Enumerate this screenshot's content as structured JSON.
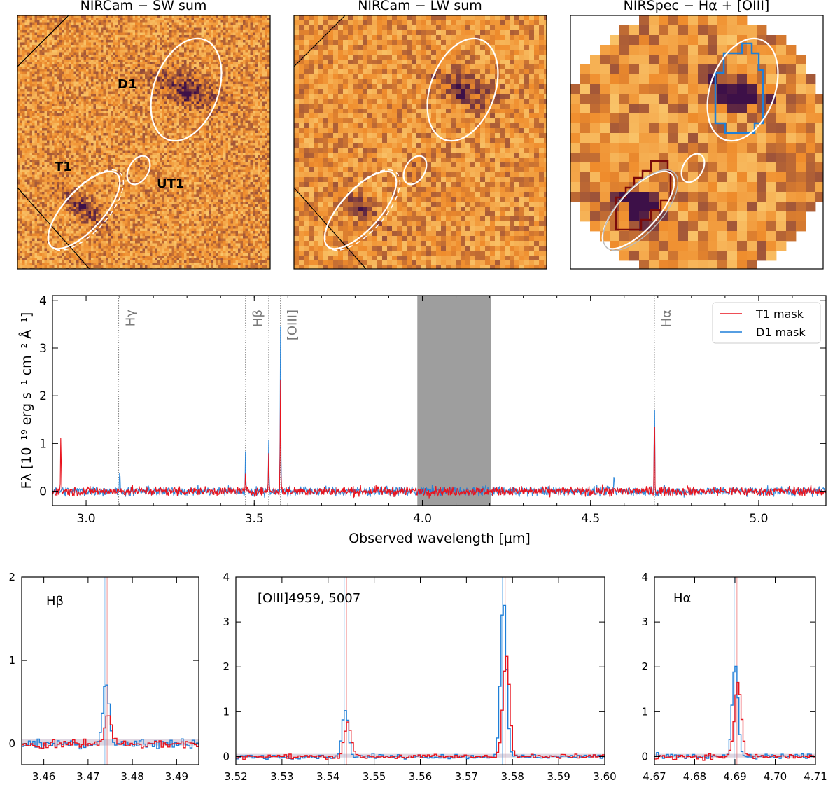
{
  "colors": {
    "t1": "#e8141e",
    "d1": "#1e7fd8",
    "grey_band": "#9e9e9e",
    "line_label": "#7a7a7a",
    "map_low": "#ffe28a",
    "map_mid": "#ef8c2c",
    "map_high": "#3d1048"
  },
  "images": {
    "sw": {
      "title": "NIRCam − SW sum",
      "labels": [
        "D1",
        "T1",
        "UT1"
      ]
    },
    "lw": {
      "title": "NIRCam − LW sum"
    },
    "spec": {
      "title": "NIRSpec − Hα + [OIII]"
    }
  },
  "chart_data": [
    {
      "type": "line",
      "title": "",
      "xlabel": "Observed wavelength [μm]",
      "ylabel": "Fλ [10⁻¹⁹ erg s⁻¹ cm⁻² Å⁻¹]",
      "xlim": [
        2.9,
        5.2
      ],
      "ylim": [
        -0.3,
        4.1
      ],
      "xticks": [
        "3.0",
        "3.5",
        "4.0",
        "4.5",
        "5.0"
      ],
      "xtick_values": [
        3.0,
        3.5,
        4.0,
        4.5,
        5.0
      ],
      "yticks": [
        "0",
        "1",
        "2",
        "3",
        "4"
      ],
      "ytick_values": [
        0,
        1,
        2,
        3,
        4
      ],
      "legend": [
        "T1 mask",
        "D1 mask"
      ],
      "legend_position": "top-right",
      "excluded_band": [
        3.985,
        4.205
      ],
      "line_markers": [
        {
          "label": "Hγ",
          "x": 3.097
        },
        {
          "label": "Hβ",
          "x": 3.474
        },
        {
          "label": "",
          "x": 3.543
        },
        {
          "label": "[OIII]",
          "x": 3.578
        },
        {
          "label": "Hα",
          "x": 4.69
        }
      ],
      "series": [
        {
          "name": "T1 mask",
          "peaks": [
            [
              2.925,
              1.28
            ],
            [
              3.474,
              0.32
            ],
            [
              3.543,
              0.82
            ],
            [
              3.578,
              2.3
            ],
            [
              4.69,
              1.62
            ]
          ],
          "noise": 0.09
        },
        {
          "name": "D1 mask",
          "peaks": [
            [
              3.1,
              0.43
            ],
            [
              3.474,
              0.78
            ],
            [
              3.543,
              1.1
            ],
            [
              3.578,
              3.55
            ],
            [
              4.69,
              2.06
            ],
            [
              4.57,
              0.28
            ]
          ],
          "noise": 0.09
        }
      ]
    },
    {
      "type": "line",
      "title": "Hβ",
      "xlim": [
        3.455,
        3.495
      ],
      "ylim": [
        -0.25,
        2.0
      ],
      "xticks": [
        "3.46",
        "3.47",
        "3.48",
        "3.49"
      ],
      "xtick_values": [
        3.46,
        3.47,
        3.48,
        3.49
      ],
      "yticks": [
        "0",
        "1",
        "2"
      ],
      "ytick_values": [
        0,
        1,
        2
      ],
      "markers": [
        3.4738,
        3.4743
      ],
      "series": [
        {
          "name": "T1 mask",
          "lines": [
            [
              3.4743,
              0.32,
              0.0012
            ]
          ],
          "noise": 0.06
        },
        {
          "name": "D1 mask",
          "lines": [
            [
              3.4738,
              0.76,
              0.001
            ]
          ],
          "noise": 0.06
        }
      ]
    },
    {
      "type": "line",
      "title": "[OIII]4959, 5007",
      "xlim": [
        3.52,
        3.6
      ],
      "ylim": [
        -0.18,
        4.0
      ],
      "xticks": [
        "3.52",
        "3.53",
        "3.54",
        "3.55",
        "3.56",
        "3.57",
        "3.58",
        "3.59",
        "3.60"
      ],
      "xtick_values": [
        3.52,
        3.53,
        3.54,
        3.55,
        3.56,
        3.57,
        3.58,
        3.59,
        3.6
      ],
      "yticks": [
        "0",
        "1",
        "2",
        "3",
        "4"
      ],
      "ytick_values": [
        0,
        1,
        2,
        3,
        4
      ],
      "markers": [
        3.5435,
        3.544,
        3.5778,
        3.5784
      ],
      "series": [
        {
          "name": "T1 mask",
          "lines": [
            [
              3.544,
              0.78,
              0.001
            ],
            [
              3.5784,
              2.3,
              0.001
            ]
          ],
          "noise": 0.05
        },
        {
          "name": "D1 mask",
          "lines": [
            [
              3.5435,
              1.08,
              0.0009
            ],
            [
              3.5778,
              3.5,
              0.0009
            ]
          ],
          "noise": 0.05
        }
      ]
    },
    {
      "type": "line",
      "title": "Hα",
      "xlim": [
        4.67,
        4.71
      ],
      "ylim": [
        -0.18,
        4.0
      ],
      "xticks": [
        "4.67",
        "4.68",
        "4.69",
        "4.70",
        "4.71"
      ],
      "xtick_values": [
        4.67,
        4.68,
        4.69,
        4.7,
        4.71
      ],
      "yticks": [
        "0",
        "1",
        "2",
        "3",
        "4"
      ],
      "ytick_values": [
        0,
        1,
        2,
        3,
        4
      ],
      "markers": [
        4.6898,
        4.6905
      ],
      "series": [
        {
          "name": "T1 mask",
          "lines": [
            [
              4.6905,
              1.62,
              0.0012
            ]
          ],
          "noise": 0.06
        },
        {
          "name": "D1 mask",
          "lines": [
            [
              4.6898,
              2.06,
              0.001
            ]
          ],
          "noise": 0.06
        }
      ]
    }
  ]
}
